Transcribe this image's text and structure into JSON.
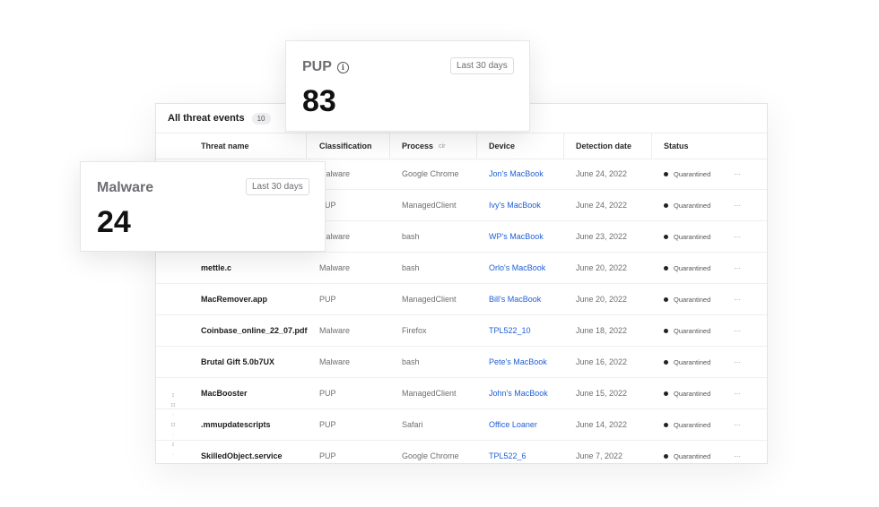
{
  "threats_panel": {
    "title": "All threat events",
    "count": "10",
    "columns": {
      "threat_name": "Threat name",
      "classification": "Classification",
      "process": "Process",
      "process_sort": "cir",
      "device": "Device",
      "detection_date": "Detection date",
      "status": "Status"
    },
    "rows": [
      {
        "name": "",
        "classification": "Malware",
        "process": "Google Chrome",
        "device": "Jon's MacBook",
        "date": "June 24, 2022",
        "status": "Quarantined"
      },
      {
        "name": "",
        "classification": "PUP",
        "process": "ManagedClient",
        "device": "Ivy's MacBook",
        "date": "June 24, 2022",
        "status": "Quarantined"
      },
      {
        "name": "",
        "classification": "Malware",
        "process": "bash",
        "device": "WP's MacBook",
        "date": "June 23, 2022",
        "status": "Quarantined"
      },
      {
        "name": "mettle.c",
        "classification": "Malware",
        "process": "bash",
        "device": "Orlo's MacBook",
        "date": "June 20, 2022",
        "status": "Quarantined"
      },
      {
        "name": "MacRemover.app",
        "classification": "PUP",
        "process": "ManagedClient",
        "device": "Bill's MacBook",
        "date": "June 20, 2022",
        "status": "Quarantined"
      },
      {
        "name": "Coinbase_online_22_07.pdf",
        "classification": "Malware",
        "process": "Firefox",
        "device": "TPL522_10",
        "date": "June 18, 2022",
        "status": "Quarantined"
      },
      {
        "name": "Brutal Gift 5.0b7UX",
        "classification": "Malware",
        "process": "bash",
        "device": "Pete's MacBook",
        "date": "June 16, 2022",
        "status": "Quarantined"
      },
      {
        "name": "MacBooster",
        "classification": "PUP",
        "process": "ManagedClient",
        "device": "John's MacBook",
        "date": "June 15, 2022",
        "status": "Quarantined"
      },
      {
        "name": ".mmupdatescripts",
        "classification": "PUP",
        "process": "Safari",
        "device": "Office Loaner",
        "date": "June 14, 2022",
        "status": "Quarantined"
      },
      {
        "name": "SkilledObject.service",
        "classification": "PUP",
        "process": "Google Chrome",
        "device": "TPL522_6",
        "date": "June 7, 2022",
        "status": "Quarantined"
      }
    ]
  },
  "pup_card": {
    "title": "PUP",
    "range": "Last 30 days",
    "value": "83",
    "icon": "info-icon"
  },
  "malware_card": {
    "title": "Malware",
    "range": "Last 30 days",
    "value": "24"
  },
  "colors": {
    "link": "#1f5fd6",
    "status_dot": "#222222"
  }
}
